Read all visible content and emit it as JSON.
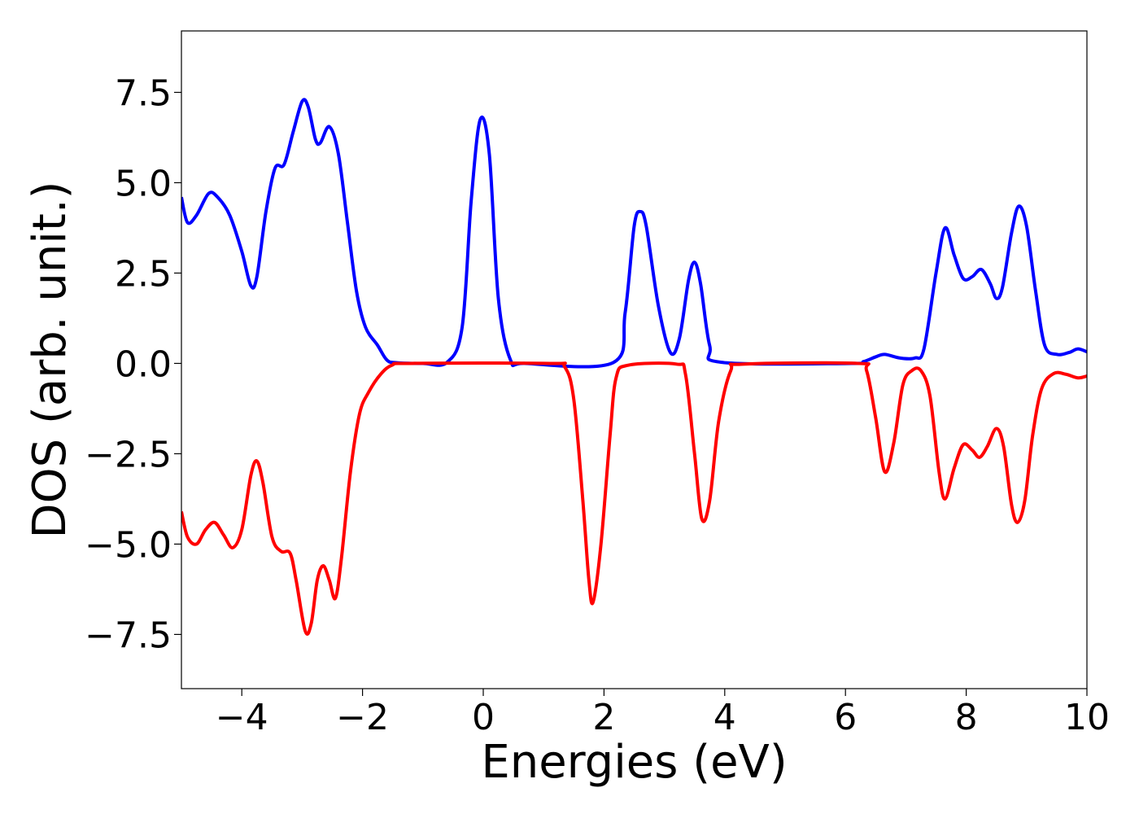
{
  "chart_data": {
    "type": "line",
    "title": "",
    "xlabel": "Energies (eV)",
    "ylabel": "DOS (arb. unit.)",
    "xlim": [
      -5,
      10
    ],
    "ylim": [
      -9,
      9.2
    ],
    "xticks": [
      {
        "value": -4,
        "label": "−4"
      },
      {
        "value": -2,
        "label": "−2"
      },
      {
        "value": 0,
        "label": "0"
      },
      {
        "value": 2,
        "label": "2"
      },
      {
        "value": 4,
        "label": "4"
      },
      {
        "value": 6,
        "label": "6"
      },
      {
        "value": 8,
        "label": "8"
      },
      {
        "value": 10,
        "label": "10"
      }
    ],
    "yticks": [
      {
        "value": 7.5,
        "label": "7.5"
      },
      {
        "value": 5.0,
        "label": "5.0"
      },
      {
        "value": 2.5,
        "label": "2.5"
      },
      {
        "value": 0.0,
        "label": "0.0"
      },
      {
        "value": -2.5,
        "label": "−2.5"
      },
      {
        "value": -5.0,
        "label": "−5.0"
      },
      {
        "value": -7.5,
        "label": "−7.5"
      }
    ],
    "grid": false,
    "legend": "none",
    "series": [
      {
        "color": "#0000ff",
        "points": [
          [
            -5.0,
            4.6
          ],
          [
            -4.9,
            3.9
          ],
          [
            -4.75,
            4.1
          ],
          [
            -4.55,
            4.7
          ],
          [
            -4.4,
            4.6
          ],
          [
            -4.2,
            4.1
          ],
          [
            -4.0,
            3.1
          ],
          [
            -3.85,
            2.15
          ],
          [
            -3.75,
            2.4
          ],
          [
            -3.6,
            4.2
          ],
          [
            -3.45,
            5.4
          ],
          [
            -3.3,
            5.5
          ],
          [
            -3.15,
            6.4
          ],
          [
            -3.0,
            7.25
          ],
          [
            -2.9,
            7.1
          ],
          [
            -2.78,
            6.2
          ],
          [
            -2.7,
            6.1
          ],
          [
            -2.55,
            6.55
          ],
          [
            -2.4,
            5.8
          ],
          [
            -2.25,
            3.9
          ],
          [
            -2.1,
            2.0
          ],
          [
            -1.95,
            1.0
          ],
          [
            -1.75,
            0.5
          ],
          [
            -1.6,
            0.1
          ],
          [
            -1.45,
            0.02
          ],
          [
            -1.0,
            0.0
          ],
          [
            -0.6,
            0.03
          ],
          [
            -0.35,
            1.0
          ],
          [
            -0.2,
            4.5
          ],
          [
            -0.05,
            6.75
          ],
          [
            0.1,
            5.8
          ],
          [
            0.25,
            1.8
          ],
          [
            0.45,
            0.1
          ],
          [
            0.7,
            0.0
          ],
          [
            2.15,
            0.02
          ],
          [
            2.35,
            1.4
          ],
          [
            2.5,
            3.8
          ],
          [
            2.6,
            4.2
          ],
          [
            2.7,
            3.8
          ],
          [
            2.9,
            1.6
          ],
          [
            3.1,
            0.3
          ],
          [
            3.25,
            0.7
          ],
          [
            3.4,
            2.3
          ],
          [
            3.5,
            2.8
          ],
          [
            3.6,
            2.2
          ],
          [
            3.75,
            0.5
          ],
          [
            3.95,
            0.03
          ],
          [
            6.1,
            0.0
          ],
          [
            6.3,
            0.05
          ],
          [
            6.5,
            0.18
          ],
          [
            6.65,
            0.25
          ],
          [
            6.9,
            0.15
          ],
          [
            7.15,
            0.15
          ],
          [
            7.3,
            0.4
          ],
          [
            7.5,
            2.5
          ],
          [
            7.65,
            3.75
          ],
          [
            7.8,
            3.0
          ],
          [
            7.95,
            2.35
          ],
          [
            8.1,
            2.4
          ],
          [
            8.25,
            2.6
          ],
          [
            8.4,
            2.2
          ],
          [
            8.5,
            1.8
          ],
          [
            8.6,
            2.1
          ],
          [
            8.75,
            3.6
          ],
          [
            8.87,
            4.35
          ],
          [
            9.0,
            3.8
          ],
          [
            9.15,
            2.0
          ],
          [
            9.3,
            0.5
          ],
          [
            9.5,
            0.25
          ],
          [
            9.7,
            0.3
          ],
          [
            9.85,
            0.4
          ],
          [
            10.0,
            0.32
          ]
        ]
      },
      {
        "color": "#ff0000",
        "points": [
          [
            -5.0,
            -4.1
          ],
          [
            -4.9,
            -4.8
          ],
          [
            -4.75,
            -5.0
          ],
          [
            -4.6,
            -4.6
          ],
          [
            -4.45,
            -4.4
          ],
          [
            -4.3,
            -4.75
          ],
          [
            -4.15,
            -5.1
          ],
          [
            -4.0,
            -4.6
          ],
          [
            -3.85,
            -3.1
          ],
          [
            -3.75,
            -2.7
          ],
          [
            -3.65,
            -3.3
          ],
          [
            -3.5,
            -4.8
          ],
          [
            -3.35,
            -5.2
          ],
          [
            -3.2,
            -5.25
          ],
          [
            -3.1,
            -6.0
          ],
          [
            -2.95,
            -7.4
          ],
          [
            -2.85,
            -7.2
          ],
          [
            -2.75,
            -6.0
          ],
          [
            -2.65,
            -5.6
          ],
          [
            -2.55,
            -6.0
          ],
          [
            -2.45,
            -6.5
          ],
          [
            -2.35,
            -5.4
          ],
          [
            -2.2,
            -3.0
          ],
          [
            -2.05,
            -1.4
          ],
          [
            -1.9,
            -0.8
          ],
          [
            -1.7,
            -0.3
          ],
          [
            -1.5,
            -0.04
          ],
          [
            -1.2,
            0.0
          ],
          [
            1.1,
            0.0
          ],
          [
            1.35,
            -0.1
          ],
          [
            1.5,
            -1.0
          ],
          [
            1.65,
            -3.8
          ],
          [
            1.75,
            -6.0
          ],
          [
            1.82,
            -6.6
          ],
          [
            1.95,
            -5.0
          ],
          [
            2.1,
            -2.0
          ],
          [
            2.2,
            -0.4
          ],
          [
            2.4,
            -0.05
          ],
          [
            3.2,
            -0.02
          ],
          [
            3.35,
            -0.3
          ],
          [
            3.5,
            -2.5
          ],
          [
            3.62,
            -4.3
          ],
          [
            3.75,
            -3.8
          ],
          [
            3.9,
            -1.6
          ],
          [
            4.1,
            -0.2
          ],
          [
            4.3,
            -0.02
          ],
          [
            6.2,
            0.0
          ],
          [
            6.35,
            -0.2
          ],
          [
            6.5,
            -1.5
          ],
          [
            6.65,
            -3.0
          ],
          [
            6.8,
            -2.2
          ],
          [
            6.95,
            -0.6
          ],
          [
            7.1,
            -0.2
          ],
          [
            7.25,
            -0.2
          ],
          [
            7.4,
            -0.9
          ],
          [
            7.55,
            -3.0
          ],
          [
            7.65,
            -3.75
          ],
          [
            7.8,
            -2.9
          ],
          [
            7.95,
            -2.25
          ],
          [
            8.1,
            -2.4
          ],
          [
            8.22,
            -2.6
          ],
          [
            8.35,
            -2.3
          ],
          [
            8.5,
            -1.8
          ],
          [
            8.62,
            -2.3
          ],
          [
            8.75,
            -3.9
          ],
          [
            8.85,
            -4.4
          ],
          [
            8.97,
            -3.8
          ],
          [
            9.1,
            -2.0
          ],
          [
            9.25,
            -0.7
          ],
          [
            9.45,
            -0.28
          ],
          [
            9.65,
            -0.3
          ],
          [
            9.85,
            -0.4
          ],
          [
            10.0,
            -0.35
          ]
        ]
      }
    ]
  }
}
